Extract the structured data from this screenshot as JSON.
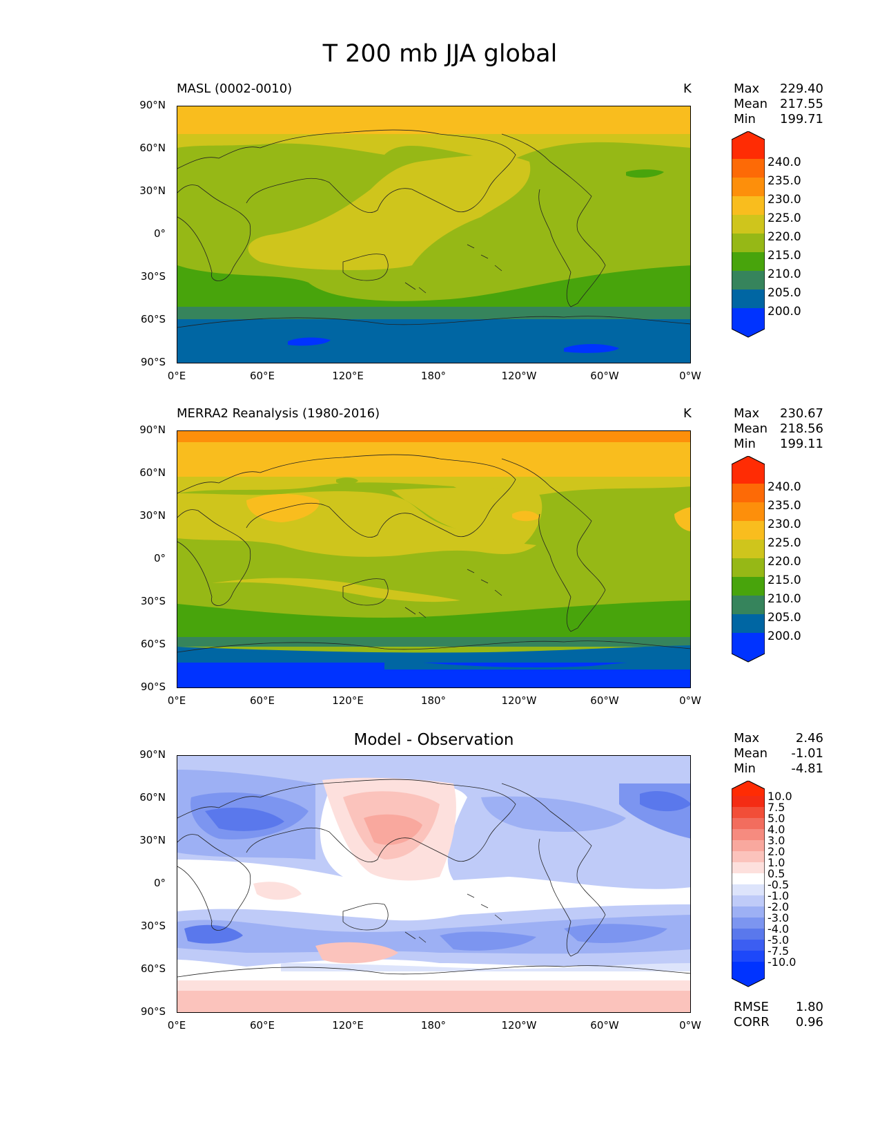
{
  "figure": {
    "title": "T 200 mb JJA global"
  },
  "axes": {
    "y_ticks": [
      "90°N",
      "60°N",
      "30°N",
      "0°",
      "30°S",
      "60°S",
      "90°S"
    ],
    "x_ticks": [
      "0°E",
      "60°E",
      "120°E",
      "180°",
      "120°W",
      "60°W",
      "0°W"
    ]
  },
  "panels": [
    {
      "title_left": "MASL (0002-0010)",
      "units": "K",
      "stats": [
        {
          "label": "Max",
          "value": "229.40"
        },
        {
          "label": "Mean",
          "value": "217.55"
        },
        {
          "label": "Min",
          "value": "199.71"
        }
      ],
      "colorbar_labels": [
        "240.0",
        "235.0",
        "230.0",
        "225.0",
        "220.0",
        "215.0",
        "210.0",
        "205.0",
        "200.0"
      ]
    },
    {
      "title_left": "MERRA2 Reanalysis (1980-2016)",
      "units": "K",
      "stats": [
        {
          "label": "Max",
          "value": "230.67"
        },
        {
          "label": "Mean",
          "value": "218.56"
        },
        {
          "label": "Min",
          "value": "199.11"
        }
      ],
      "colorbar_labels": [
        "240.0",
        "235.0",
        "230.0",
        "225.0",
        "220.0",
        "215.0",
        "210.0",
        "205.0",
        "200.0"
      ]
    },
    {
      "title_center": "Model - Observation",
      "stats": [
        {
          "label": "Max",
          "value": "2.46"
        },
        {
          "label": "Mean",
          "value": "-1.01"
        },
        {
          "label": "Min",
          "value": "-4.81"
        }
      ],
      "colorbar_labels": [
        "10.0",
        "7.5",
        "5.0",
        "4.0",
        "3.0",
        "2.0",
        "1.0",
        "0.5",
        "-0.5",
        "-1.0",
        "-2.0",
        "-3.0",
        "-4.0",
        "-5.0",
        "-7.5",
        "-10.0"
      ],
      "metrics": [
        {
          "label": "RMSE",
          "value": "1.80"
        },
        {
          "label": "CORR",
          "value": "0.96"
        }
      ]
    }
  ],
  "chart_data": [
    {
      "type": "heatmap",
      "title": "MASL (0002-0010)",
      "units": "K",
      "xlim": [
        0,
        360
      ],
      "ylim": [
        -90,
        90
      ],
      "levels": [
        200.0,
        205.0,
        210.0,
        215.0,
        220.0,
        225.0,
        230.0,
        235.0,
        240.0
      ],
      "colors": [
        "#0033ff",
        "#0066a3",
        "#36845c",
        "#48a40c",
        "#96b816",
        "#cfc51c",
        "#f9bd1e",
        "#fd8f0b",
        "#fd6a06",
        "#ff2c04"
      ],
      "stats": {
        "max": 229.4,
        "mean": 217.55,
        "min": 199.71
      },
      "zonal_bands": [
        {
          "lat": [
            72,
            90
          ],
          "value": 227.5
        },
        {
          "lat": [
            55,
            72
          ],
          "value": 222.5
        },
        {
          "lat": [
            -25,
            55
          ],
          "value": 217.5
        },
        {
          "lat": [
            -45,
            -25
          ],
          "value": 212.5
        },
        {
          "lat": [
            -57,
            -45
          ],
          "value": 207.5
        },
        {
          "lat": [
            -90,
            -57
          ],
          "value": 202.5
        }
      ]
    },
    {
      "type": "heatmap",
      "title": "MERRA2 Reanalysis (1980-2016)",
      "units": "K",
      "xlim": [
        0,
        360
      ],
      "ylim": [
        -90,
        90
      ],
      "levels": [
        200.0,
        205.0,
        210.0,
        215.0,
        220.0,
        225.0,
        230.0,
        235.0,
        240.0
      ],
      "colors": [
        "#0033ff",
        "#0066a3",
        "#36845c",
        "#48a40c",
        "#96b816",
        "#cfc51c",
        "#f9bd1e",
        "#fd8f0b",
        "#fd6a06",
        "#ff2c04"
      ],
      "stats": {
        "max": 230.67,
        "mean": 218.56,
        "min": 199.11
      },
      "zonal_bands": [
        {
          "lat": [
            82,
            90
          ],
          "value": 232.5
        },
        {
          "lat": [
            62,
            82
          ],
          "value": 227.5
        },
        {
          "lat": [
            -35,
            62
          ],
          "value": 217.5
        },
        {
          "lat": [
            -55,
            -35
          ],
          "value": 212.5
        },
        {
          "lat": [
            -65,
            -55
          ],
          "value": 207.5
        },
        {
          "lat": [
            -78,
            -65
          ],
          "value": 202.5
        },
        {
          "lat": [
            -90,
            -78
          ],
          "value": 197.5
        }
      ]
    },
    {
      "type": "heatmap",
      "title": "Model - Observation",
      "xlim": [
        0,
        360
      ],
      "ylim": [
        -90,
        90
      ],
      "levels": [
        -10.0,
        -7.5,
        -5.0,
        -4.0,
        -3.0,
        -2.0,
        -1.0,
        -0.5,
        0.5,
        1.0,
        2.0,
        3.0,
        4.0,
        5.0,
        7.5,
        10.0
      ],
      "colors": [
        "#0033ff",
        "#1d48fa",
        "#3c5ef2",
        "#5a78ec",
        "#7c95f0",
        "#9db0f4",
        "#bfcbf8",
        "#dde4fb",
        "#ffffff",
        "#fde0dd",
        "#fbc3bc",
        "#f9a89e",
        "#f68b7f",
        "#f26d5e",
        "#f24e38",
        "#f42c14",
        "#ff2c04"
      ],
      "stats": {
        "max": 2.46,
        "mean": -1.01,
        "min": -4.81
      },
      "metrics": {
        "rmse": 1.8,
        "corr": 0.96
      }
    }
  ]
}
